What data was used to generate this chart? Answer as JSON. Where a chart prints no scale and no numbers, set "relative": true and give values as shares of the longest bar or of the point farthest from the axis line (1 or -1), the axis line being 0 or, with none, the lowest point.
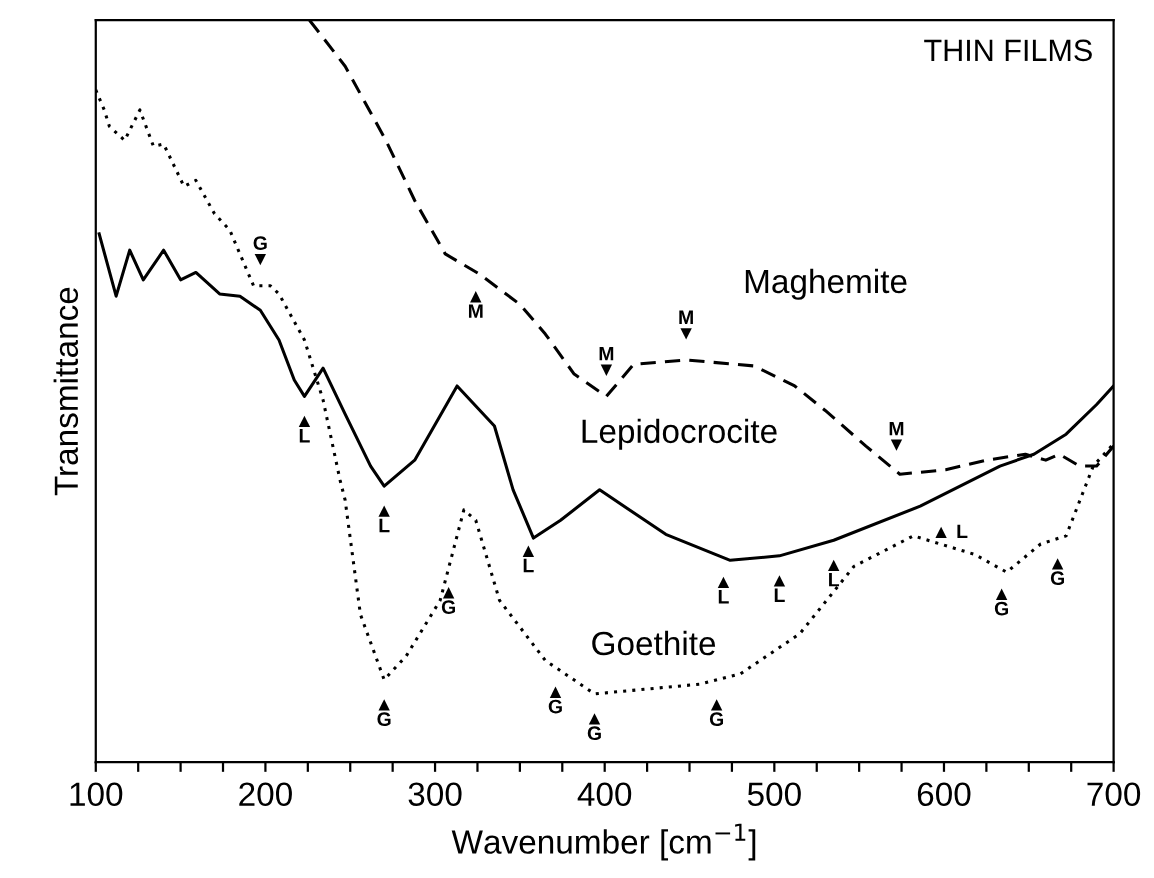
{
  "chart_data": {
    "type": "line",
    "relative": true,
    "xlabel": "Wavenumber [cm$^{−1}$]",
    "ylabel": "Transmittance",
    "xlim": [
      100,
      700
    ],
    "xticks": [
      100,
      {
        "value": 125,
        "label": null
      },
      {
        "value": 150,
        "label": null
      },
      {
        "value": 175,
        "label": null
      },
      200,
      {
        "value": 225,
        "label": null
      },
      {
        "value": 250,
        "label": null
      },
      {
        "value": 275,
        "label": null
      },
      300,
      {
        "value": 325,
        "label": null
      },
      {
        "value": 350,
        "label": null
      },
      {
        "value": 375,
        "label": null
      },
      400,
      {
        "value": 425,
        "label": null
      },
      {
        "value": 450,
        "label": null
      },
      {
        "value": 475,
        "label": null
      },
      500,
      {
        "value": 525,
        "label": null
      },
      {
        "value": 550,
        "label": null
      },
      {
        "value": 575,
        "label": null
      },
      600,
      {
        "value": 625,
        "label": null
      },
      {
        "value": 650,
        "label": null
      },
      {
        "value": 675,
        "label": null
      },
      700
    ],
    "tick_labels": "x",
    "grid": false,
    "legend": false,
    "series": [
      {
        "color": "#000000",
        "line_style": "dashed",
        "x": [
          226,
          247,
          271,
          288,
          306,
          326,
          350,
          365,
          382,
          401,
          417,
          448,
          488,
          512,
          530,
          554,
          574,
          601,
          625,
          648,
          660,
          668,
          680,
          690,
          700
        ],
        "values": [
          1.0,
          0.938,
          0.838,
          0.757,
          0.685,
          0.658,
          0.617,
          0.577,
          0.523,
          0.493,
          0.536,
          0.542,
          0.534,
          0.507,
          0.474,
          0.426,
          0.388,
          0.394,
          0.407,
          0.415,
          0.407,
          0.415,
          0.399,
          0.399,
          0.426
        ]
      },
      {
        "color": "#000000",
        "line_style": "solid",
        "x": [
          102,
          112,
          120,
          128,
          140,
          150,
          159,
          173,
          185,
          197,
          208,
          217,
          223,
          234,
          247,
          262,
          270,
          288,
          313,
          335,
          346,
          358,
          374,
          397,
          436,
          474,
          503,
          535,
          586,
          633,
          653,
          672,
          690,
          700
        ],
        "values": [
          0.712,
          0.628,
          0.69,
          0.65,
          0.69,
          0.65,
          0.66,
          0.631,
          0.628,
          0.609,
          0.569,
          0.515,
          0.493,
          0.531,
          0.469,
          0.399,
          0.372,
          0.407,
          0.507,
          0.453,
          0.367,
          0.302,
          0.326,
          0.367,
          0.307,
          0.272,
          0.278,
          0.299,
          0.345,
          0.399,
          0.415,
          0.442,
          0.482,
          0.507
        ]
      },
      {
        "color": "#000000",
        "line_style": "dotted",
        "x": [
          100,
          105,
          108,
          117,
          126,
          134,
          140,
          152,
          159,
          170,
          179,
          193,
          203,
          208,
          223,
          234,
          244,
          247,
          256,
          270,
          283,
          303,
          317,
          324,
          338,
          365,
          394,
          456,
          480,
          515,
          547,
          582,
          618,
          637,
          657,
          672,
          688,
          700
        ],
        "values": [
          0.906,
          0.879,
          0.857,
          0.838,
          0.879,
          0.83,
          0.833,
          0.776,
          0.784,
          0.739,
          0.717,
          0.642,
          0.642,
          0.631,
          0.569,
          0.488,
          0.38,
          0.353,
          0.199,
          0.111,
          0.143,
          0.218,
          0.34,
          0.326,
          0.218,
          0.137,
          0.092,
          0.105,
          0.119,
          0.173,
          0.264,
          0.305,
          0.28,
          0.256,
          0.294,
          0.305,
          0.399,
          0.429
        ]
      }
    ],
    "annotations": [
      "THIN FILMS",
      "Maghemite",
      "Lepidocrocite",
      "Goethite",
      {
        "text": "G\n▼",
        "x": 197,
        "y": 0.642
      },
      {
        "text": "▲\nM",
        "x": 324,
        "y": 0.661
      },
      {
        "text": "M\n▼",
        "x": 401,
        "y": 0.493
      },
      {
        "text": "M\n▼",
        "x": 448,
        "y": 0.542
      },
      {
        "text": "M\n▼",
        "x": 572,
        "y": 0.392
      },
      {
        "text": "▲\nL",
        "x": 223,
        "y": 0.493
      },
      {
        "text": "▲\nL",
        "x": 270,
        "y": 0.372
      },
      {
        "text": "▲\nL",
        "x": 355,
        "y": 0.318
      },
      {
        "text": "▲\nL",
        "x": 470,
        "y": 0.276
      },
      {
        "text": "▲\nL",
        "x": 503,
        "y": 0.278
      },
      {
        "text": "▲\nL",
        "x": 535,
        "y": 0.299
      },
      {
        "text": "▲ L",
        "x": 591,
        "y": 0.351
      },
      {
        "text": "▲\nG",
        "x": 270,
        "y": 0.111
      },
      {
        "text": "▲\nG",
        "x": 308,
        "y": 0.262
      },
      {
        "text": "▲\nG",
        "x": 371,
        "y": 0.128
      },
      {
        "text": "▲\nG",
        "x": 394,
        "y": 0.092
      },
      {
        "text": "▲\nG",
        "x": 466,
        "y": 0.111
      },
      {
        "text": "▲\nG",
        "x": 634,
        "y": 0.26
      },
      {
        "text": "▲\nG",
        "x": 667,
        "y": 0.301
      }
    ]
  }
}
